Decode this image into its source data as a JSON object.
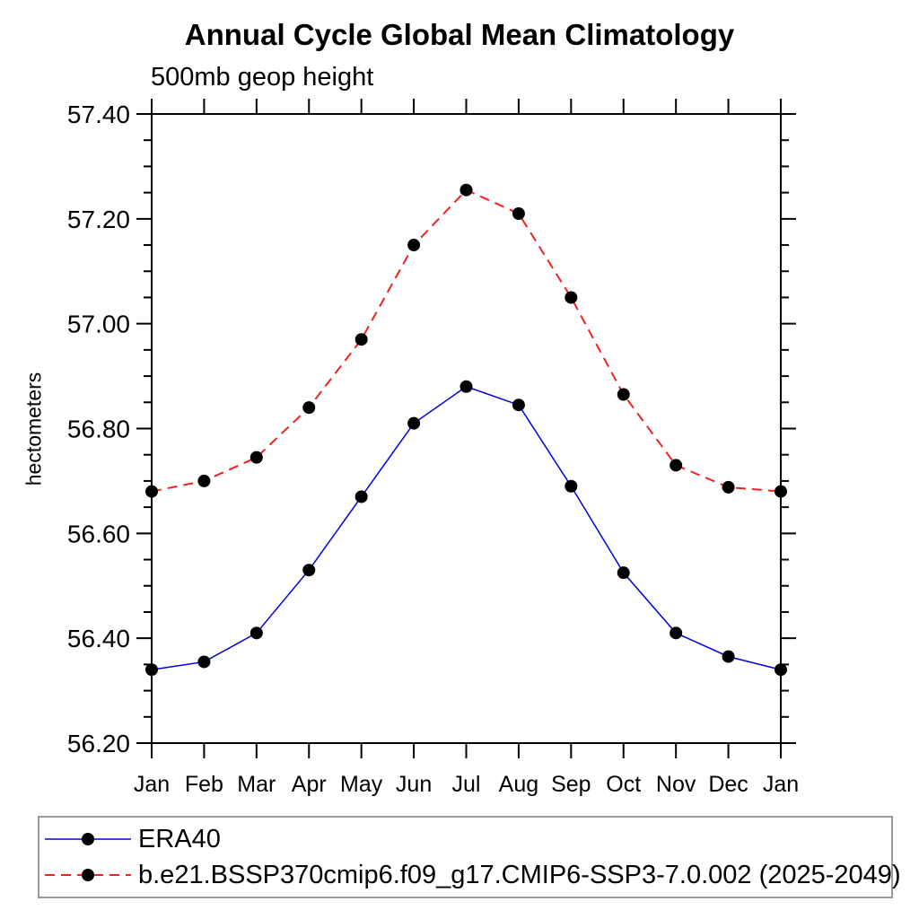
{
  "chart_data": {
    "type": "line",
    "title": "Annual Cycle Global Mean Climatology",
    "subtitle": "500mb geop height",
    "ylabel": "hectometers",
    "xlabel": "",
    "categories": [
      "Jan",
      "Feb",
      "Mar",
      "Apr",
      "May",
      "Jun",
      "Jul",
      "Aug",
      "Sep",
      "Oct",
      "Nov",
      "Dec",
      "Jan"
    ],
    "ylim": [
      56.2,
      57.4
    ],
    "ytick_major_interval": 0.2,
    "ytick_minor_interval": 0.05,
    "ytick_labels": [
      "56.20",
      "56.40",
      "56.60",
      "56.80",
      "57.00",
      "57.20",
      "57.40"
    ],
    "grid": false,
    "legend_position": "bottom-left",
    "axis_color": "#000000",
    "background_color": "#ffffff",
    "series": [
      {
        "name": "ERA40",
        "line_color": "#0000dd",
        "line_style": "solid",
        "line_width": 1.5,
        "marker": "filled-circle",
        "marker_color": "#000000",
        "values": [
          56.34,
          56.355,
          56.41,
          56.53,
          56.67,
          56.81,
          56.88,
          56.845,
          56.69,
          56.525,
          56.41,
          56.365,
          56.34
        ]
      },
      {
        "name": "b.e21.BSSP370cmip6.f09_g17.CMIP6-SSP3-7.0.002 (2025-2049)",
        "line_color": "#ee2222",
        "line_style": "dashed",
        "line_width": 2,
        "marker": "filled-circle",
        "marker_color": "#000000",
        "values": [
          56.68,
          56.7,
          56.745,
          56.84,
          56.97,
          57.15,
          57.255,
          57.21,
          57.05,
          56.865,
          56.73,
          56.688,
          56.68
        ]
      }
    ]
  }
}
